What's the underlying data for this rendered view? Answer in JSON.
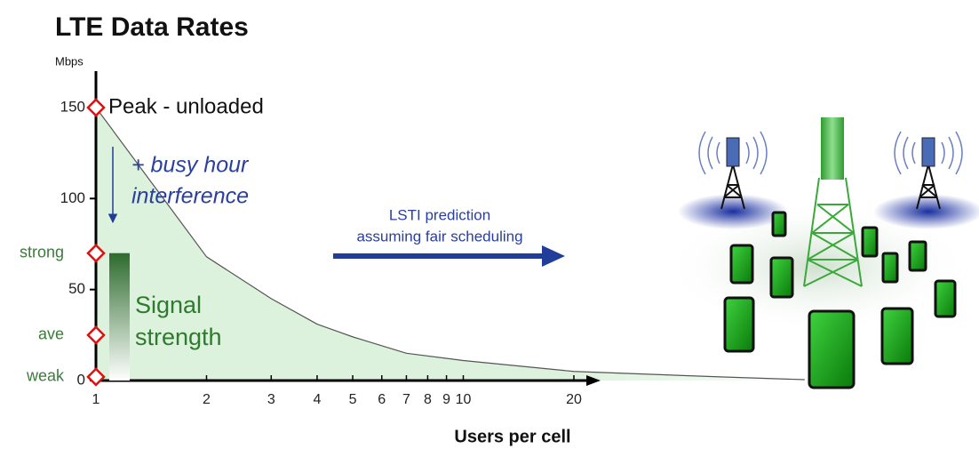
{
  "chart_data": {
    "type": "area",
    "title": "LTE Data Rates",
    "y_unit": "Mbps",
    "x_label": "Users per cell",
    "x_scale": "log",
    "xlim": [
      1,
      100
    ],
    "ylim": [
      0,
      170
    ],
    "xticks": [
      1,
      2,
      3,
      4,
      5,
      6,
      7,
      8,
      9,
      10,
      20
    ],
    "yticks": [
      0,
      50,
      100,
      150
    ],
    "signal_levels": [
      {
        "value": 70,
        "label": "strong"
      },
      {
        "value": 25,
        "label": "ave"
      },
      {
        "value": 2,
        "label": "weak"
      }
    ],
    "x": [
      1,
      2,
      3,
      4,
      5,
      7,
      10,
      20,
      50,
      85
    ],
    "series": [
      {
        "name": "Peak - unloaded",
        "color": "#dcf2dc",
        "line_color": "#555555",
        "values": [
          150,
          68,
          45,
          31,
          24,
          15,
          11,
          5,
          2,
          0.5
        ]
      }
    ],
    "annotations": [
      {
        "lines": [
          "+ busy hour",
          "interference"
        ]
      },
      {
        "lines": [
          "LSTI prediction",
          "assuming fair scheduling"
        ]
      },
      {
        "lines": [
          "Signal",
          "strength"
        ]
      }
    ]
  }
}
